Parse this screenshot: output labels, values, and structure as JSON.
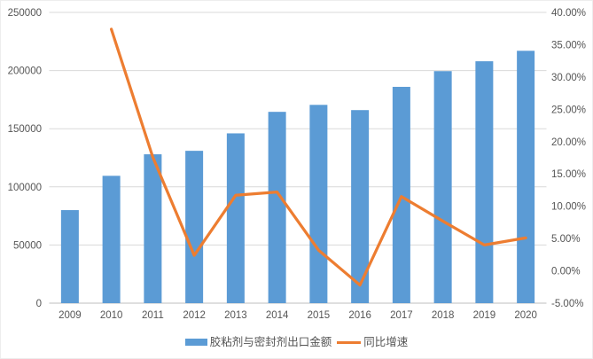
{
  "chart_data": {
    "type": "bar",
    "subtype": "combo-bar-line-dual-axis",
    "title": "",
    "xlabel": "",
    "ylabel_left": "",
    "ylabel_right": "",
    "grid": true,
    "legend_position": "bottom",
    "categories": [
      "2009",
      "2010",
      "2011",
      "2012",
      "2013",
      "2014",
      "2015",
      "2016",
      "2017",
      "2018",
      "2019",
      "2020"
    ],
    "series": [
      {
        "name": "胶粘剂与密封剂出口金额",
        "type": "bar",
        "axis": "left",
        "color": "#5B9BD5",
        "values": [
          80000,
          109500,
          128000,
          131000,
          146000,
          164500,
          170500,
          166000,
          186000,
          199500,
          208000,
          217000
        ]
      },
      {
        "name": "同比增速",
        "type": "line",
        "axis": "right",
        "color": "#ED7D31",
        "values": [
          null,
          37.4,
          17.6,
          2.4,
          11.7,
          12.2,
          3.2,
          -2.2,
          11.5,
          7.7,
          4.0,
          5.1
        ]
      }
    ],
    "left_axis": {
      "min": 0,
      "max": 250000,
      "tick_step": 50000,
      "tick_labels": [
        "250000",
        "200000",
        "150000",
        "100000",
        "50000",
        "0"
      ]
    },
    "right_axis": {
      "min": -5,
      "max": 40,
      "tick_step": 5,
      "tick_labels": [
        "40.00%",
        "35.00%",
        "30.00%",
        "25.00%",
        "20.00%",
        "15.00%",
        "10.00%",
        "5.00%",
        "0.00%",
        "-5.00%"
      ]
    },
    "colors": {
      "grid": "#d9d9d9",
      "axis_line": "#bfbfbf",
      "text": "#555555"
    }
  }
}
